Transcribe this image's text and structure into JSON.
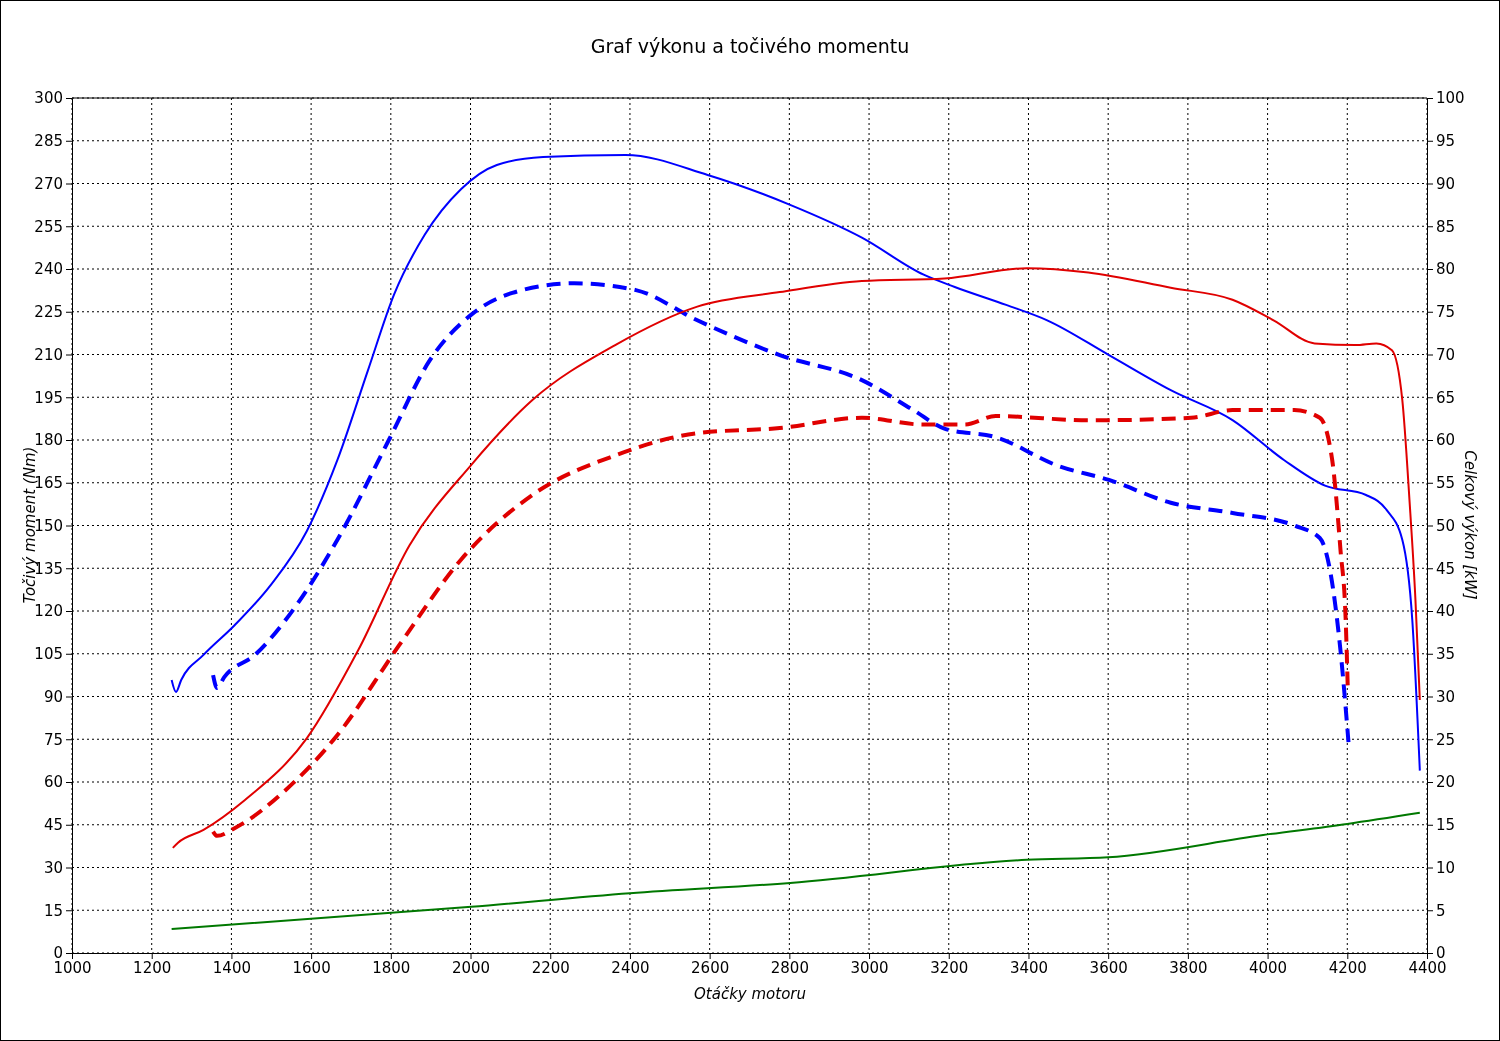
{
  "chart_data": {
    "type": "line",
    "title": "Graf výkonu a točivého momentu",
    "xlabel": "Otáčky motoru",
    "ylabel": "Točivý moment (Nm)",
    "y2label": "Celkový výkon [kW]",
    "xlim": [
      1000,
      4400
    ],
    "xticks": [
      1000,
      1200,
      1400,
      1600,
      1800,
      2000,
      2200,
      2400,
      2600,
      2800,
      3000,
      3200,
      3400,
      3600,
      3800,
      4000,
      4200,
      4400
    ],
    "ylim": [
      0,
      300
    ],
    "yticks": [
      0,
      15,
      30,
      45,
      60,
      75,
      90,
      105,
      120,
      135,
      150,
      165,
      180,
      195,
      210,
      225,
      240,
      255,
      270,
      285,
      300
    ],
    "y2lim": [
      0,
      100
    ],
    "y2ticks": [
      0,
      5,
      10,
      15,
      20,
      25,
      30,
      35,
      40,
      45,
      50,
      55,
      60,
      65,
      70,
      75,
      80,
      85,
      90,
      95,
      100
    ],
    "grid": true,
    "marker": "none",
    "series": [
      {
        "color": "#0000ff",
        "line_style": "solid",
        "x": [
          1250,
          1261,
          1274,
          1330,
          1408,
          1498,
          1589,
          1666,
          1743,
          1808,
          1885,
          1976,
          2066,
          2182,
          2389,
          2595,
          2802,
          2982,
          3137,
          3215,
          3344,
          3447,
          3602,
          3757,
          3912,
          4041,
          4144,
          4247,
          4299,
          4338,
          4363,
          4382
        ],
        "values": [
          95.8,
          91.6,
          95.8,
          104.6,
          115,
          129,
          148,
          173,
          204.6,
          231,
          252,
          268,
          276.5,
          279.3,
          280,
          273,
          262.5,
          251,
          238,
          233.7,
          227.4,
          222,
          209.8,
          197.5,
          187,
          173,
          164,
          160.7,
          155.4,
          145,
          117,
          64
        ]
      },
      {
        "color": "#0000ff",
        "line_style": "dashed",
        "x": [
          1354,
          1364,
          1382,
          1459,
          1563,
          1666,
          1795,
          1898,
          2002,
          2105,
          2260,
          2415,
          2569,
          2776,
          2982,
          3111,
          3189,
          3318,
          3473,
          3602,
          3757,
          3912,
          4067,
          4131,
          4157,
          4183,
          4203
        ],
        "values": [
          97.5,
          93,
          96.8,
          104.6,
          122,
          145,
          180,
          208,
          224,
          231.6,
          235,
          232.6,
          222,
          209.8,
          201,
          190.5,
          184,
          181,
          171,
          166,
          158,
          154.4,
          150,
          145.6,
          134,
          106,
          74
        ]
      },
      {
        "color": "#e00000",
        "line_style": "solid",
        "axis": "y2",
        "x": [
          1253,
          1266,
          1330,
          1434,
          1589,
          1718,
          1847,
          2002,
          2156,
          2363,
          2569,
          2776,
          2982,
          3189,
          3396,
          3550,
          3757,
          3912,
          4015,
          4118,
          4221,
          4273,
          4312,
          4338,
          4356,
          4371,
          4382
        ],
        "values": [
          12.3,
          12.9,
          14.4,
          17.9,
          25.1,
          35.4,
          47.7,
          57.1,
          64.7,
          71.1,
          75.6,
          77.3,
          78.6,
          78.9,
          80.1,
          79.6,
          77.8,
          76.4,
          74,
          71.3,
          71.1,
          71.3,
          70.5,
          64.7,
          53,
          41.3,
          29.6
        ]
      },
      {
        "color": "#e00000",
        "line_style": "dashed",
        "axis": "y2",
        "x": [
          1354,
          1364,
          1408,
          1537,
          1666,
          1821,
          1976,
          2156,
          2363,
          2569,
          2776,
          2982,
          3137,
          3240,
          3318,
          3550,
          3808,
          3912,
          4067,
          4131,
          4162,
          4183,
          4196,
          4201
        ],
        "values": [
          14.2,
          13.7,
          14.6,
          19.1,
          25.5,
          36,
          46,
          53.6,
          58.2,
          60.8,
          61.4,
          62.6,
          61.8,
          61.8,
          62.8,
          62.3,
          62.6,
          63.5,
          63.5,
          62.6,
          57.7,
          47.1,
          38.9,
          31.3
        ]
      },
      {
        "color": "#007800",
        "line_style": "solid",
        "axis": "y2",
        "x": [
          1250,
          2002,
          2400,
          2802,
          3396,
          3600,
          3989,
          4200,
          4382
        ],
        "values": [
          2.8,
          5.4,
          7,
          8.2,
          10.9,
          11.2,
          13.8,
          15.1,
          16.4
        ]
      }
    ]
  }
}
